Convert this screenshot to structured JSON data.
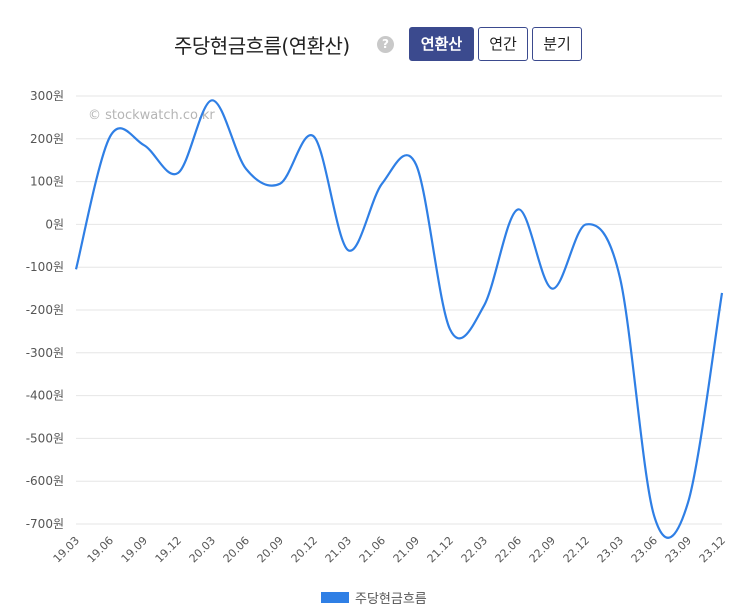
{
  "header": {
    "title": "주당현금흐름(연환산)",
    "help_glyph": "?",
    "buttons": [
      {
        "label": "연환산",
        "active": true
      },
      {
        "label": "연간",
        "active": false
      },
      {
        "label": "분기",
        "active": false
      }
    ]
  },
  "chart_data": {
    "type": "line",
    "watermark": "© stockwatch.co.kr",
    "x": [
      "19.03",
      "19.06",
      "19.09",
      "19.12",
      "20.03",
      "20.06",
      "20.09",
      "20.12",
      "21.03",
      "21.06",
      "21.09",
      "21.12",
      "22.03",
      "22.06",
      "22.09",
      "22.12",
      "23.03",
      "23.06",
      "23.09",
      "23.12"
    ],
    "series": [
      {
        "name": "주당현금흐름",
        "values": [
          -105,
          205,
          185,
          120,
          290,
          130,
          95,
          205,
          -60,
          95,
          140,
          -245,
          -190,
          35,
          -150,
          0,
          -125,
          -680,
          -650,
          -160
        ],
        "color": "#2f7fe5"
      }
    ],
    "ylim": [
      -700,
      300
    ],
    "yticks": [
      300,
      200,
      100,
      0,
      -100,
      -200,
      -300,
      -400,
      -500,
      -600,
      -700
    ],
    "ytick_labels": [
      "300원",
      "200원",
      "100원",
      "0원",
      "-100원",
      "-200원",
      "-300원",
      "-400원",
      "-500원",
      "-600원",
      "-700원"
    ],
    "grid": true,
    "legend": "bottom"
  }
}
